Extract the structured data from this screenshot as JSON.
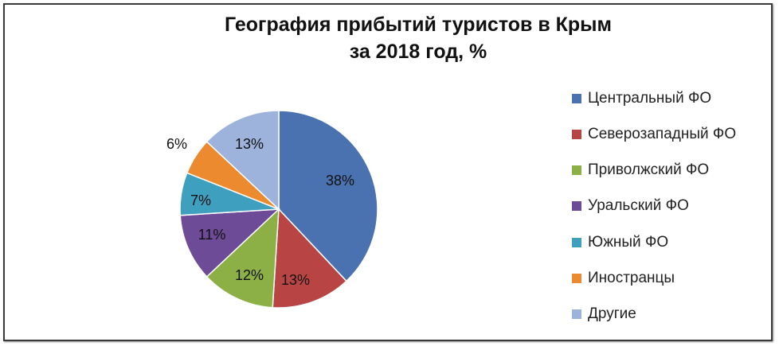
{
  "chart_data": {
    "type": "pie",
    "title": "География прибытий туристов в Крым за 2018 год, %",
    "title_lines": [
      "География прибытий туристов в Крым",
      "за 2018 год, %"
    ],
    "legend_position": "right",
    "slices": [
      {
        "name": "Центральный ФО",
        "value": 38,
        "label": "38%",
        "color": "#4a72b0"
      },
      {
        "name": "Северозападный ФО",
        "value": 13,
        "label": "13%",
        "color": "#b84444"
      },
      {
        "name": "Приволжский ФО",
        "value": 12,
        "label": "12%",
        "color": "#8cb045"
      },
      {
        "name": "Уральский ФО",
        "value": 11,
        "label": "11%",
        "color": "#6e4b96"
      },
      {
        "name": "Южный ФО",
        "value": 7,
        "label": "7%",
        "color": "#3e9fbe"
      },
      {
        "name": "Иностранцы",
        "value": 6,
        "label": "6%",
        "color": "#ec8a2f"
      },
      {
        "name": "Другие",
        "value": 13,
        "label": "13%",
        "color": "#9eb3db"
      }
    ]
  }
}
